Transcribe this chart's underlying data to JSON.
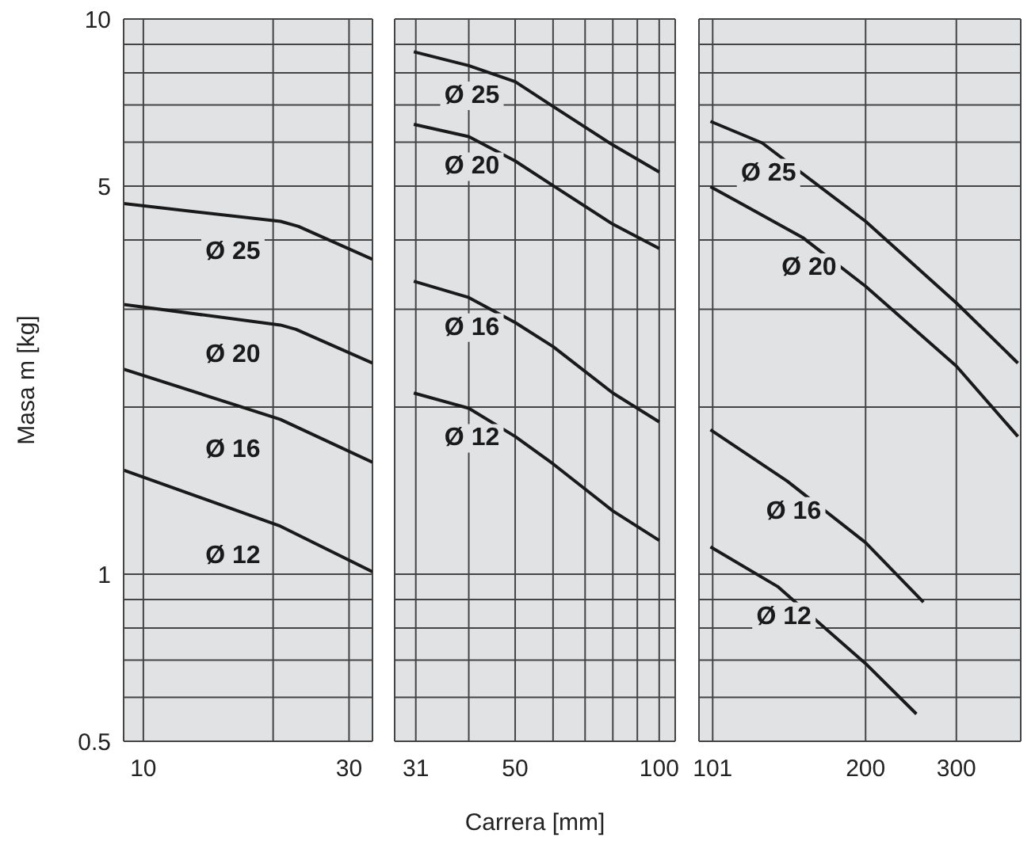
{
  "chart_data": [
    {
      "type": "line",
      "ylabel": "Masa m [kg]",
      "log": "xy",
      "grid": true,
      "xlim": [
        9,
        34
      ],
      "xticks": [
        10,
        {
          "value": 20,
          "label": null
        },
        30
      ],
      "ylim": [
        0.5,
        10
      ],
      "yticks": [
        0.5,
        {
          "value": 0.6,
          "label": null
        },
        {
          "value": 0.7,
          "label": null
        },
        {
          "value": 0.8,
          "label": null
        },
        {
          "value": 0.9,
          "label": null
        },
        1,
        {
          "value": 2,
          "label": null
        },
        {
          "value": 3,
          "label": null
        },
        {
          "value": 4,
          "label": null
        },
        5,
        {
          "value": 6,
          "label": null
        },
        {
          "value": 7,
          "label": null
        },
        {
          "value": 8,
          "label": null
        },
        {
          "value": 9,
          "label": null
        },
        10
      ],
      "series": [
        {
          "name": "Ø 25",
          "color": "#1a1a1a",
          "x": [
            9,
            20.8,
            22.9,
            34
          ],
          "values": [
            4.65,
            4.32,
            4.23,
            3.69
          ]
        },
        {
          "name": "Ø 20",
          "color": "#1a1a1a",
          "x": [
            9,
            20.8,
            22.6,
            34
          ],
          "values": [
            3.06,
            2.81,
            2.76,
            2.4
          ]
        },
        {
          "name": "Ø 16",
          "color": "#1a1a1a",
          "x": [
            9,
            20.8,
            34
          ],
          "values": [
            2.34,
            1.9,
            1.59
          ]
        },
        {
          "name": "Ø 12",
          "color": "#1a1a1a",
          "x": [
            9,
            20.8,
            34
          ],
          "values": [
            1.54,
            1.22,
            1.01
          ]
        }
      ]
    },
    {
      "type": "line",
      "xlabel": "Carrera [mm]",
      "log": "xy",
      "grid": true,
      "tick_labels": "x",
      "xlim": [
        28,
        108
      ],
      "xticks": [
        31,
        {
          "value": 40,
          "label": null
        },
        50,
        {
          "value": 60,
          "label": null
        },
        {
          "value": 70,
          "label": null
        },
        {
          "value": 80,
          "label": null
        },
        {
          "value": 90,
          "label": null
        },
        100
      ],
      "ylim": [
        0.5,
        10
      ],
      "yticks": [
        0.5,
        0.6,
        0.7,
        0.8,
        0.9,
        1,
        2,
        3,
        4,
        5,
        6,
        7,
        8,
        9,
        10
      ],
      "series": [
        {
          "name": "Ø 25",
          "color": "#1a1a1a",
          "x": [
            30.7,
            40,
            50,
            60,
            80,
            100
          ],
          "values": [
            8.73,
            8.24,
            7.71,
            6.96,
            5.93,
            5.3
          ]
        },
        {
          "name": "Ø 20",
          "color": "#1a1a1a",
          "x": [
            30.7,
            40,
            50,
            60,
            80,
            100
          ],
          "values": [
            6.46,
            6.14,
            5.55,
            5.01,
            4.27,
            3.86
          ]
        },
        {
          "name": "Ø 16",
          "color": "#1a1a1a",
          "x": [
            30.7,
            40,
            50,
            60,
            80,
            100
          ],
          "values": [
            3.37,
            3.15,
            2.84,
            2.57,
            2.12,
            1.88
          ]
        },
        {
          "name": "Ø 12",
          "color": "#1a1a1a",
          "x": [
            30.7,
            40,
            50,
            60,
            80,
            100
          ],
          "values": [
            2.12,
            1.99,
            1.77,
            1.58,
            1.3,
            1.15
          ]
        }
      ]
    },
    {
      "type": "line",
      "log": "xy",
      "grid": true,
      "tick_labels": "x",
      "xlim": [
        95,
        400
      ],
      "xticks": [
        101,
        200,
        300
      ],
      "ylim": [
        0.5,
        10
      ],
      "yticks": [
        0.5,
        0.6,
        0.7,
        0.8,
        0.9,
        1,
        2,
        3,
        4,
        5,
        6,
        7,
        8,
        9,
        10
      ],
      "series": [
        {
          "name": "Ø 25",
          "color": "#1a1a1a",
          "x": [
            100,
            126,
            200,
            300,
            395
          ],
          "values": [
            6.54,
            5.98,
            4.32,
            3.08,
            2.4
          ]
        },
        {
          "name": "Ø 20",
          "color": "#1a1a1a",
          "x": [
            100,
            151,
            200,
            300,
            395
          ],
          "values": [
            4.99,
            4.04,
            3.3,
            2.37,
            1.77
          ]
        },
        {
          "name": "Ø 16",
          "color": "#1a1a1a",
          "x": [
            100,
            141,
            200,
            259
          ],
          "values": [
            1.82,
            1.47,
            1.14,
            0.89
          ]
        },
        {
          "name": "Ø 12",
          "color": "#1a1a1a",
          "x": [
            100,
            135,
            200,
            251
          ],
          "values": [
            1.12,
            0.95,
            0.69,
            0.56
          ]
        }
      ]
    }
  ]
}
